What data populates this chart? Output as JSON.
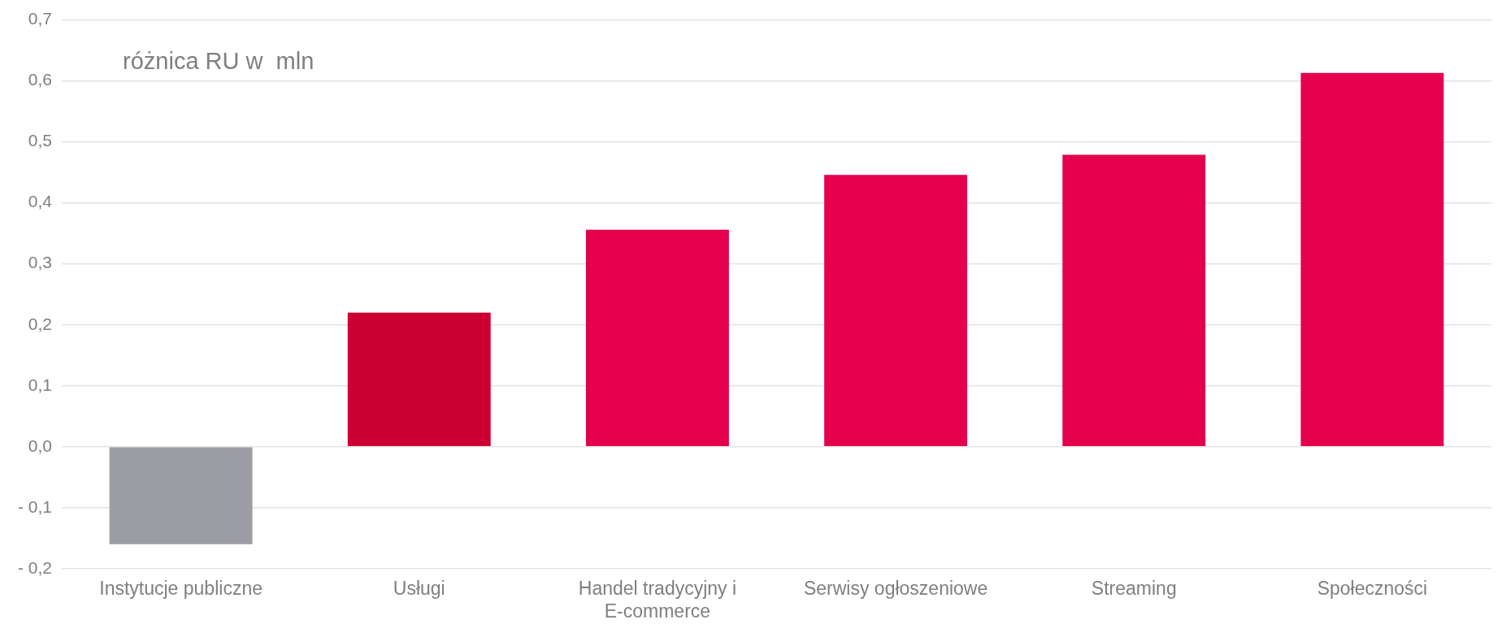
{
  "chart_data": {
    "type": "bar",
    "title": "różnica RU w  mln",
    "categories": [
      "Instytucje publiczne",
      "Usługi",
      "Handel tradycyjny i E-commerce",
      "Serwisy ogłoszeniowe",
      "Streaming",
      "Społeczności"
    ],
    "values": [
      -0.16,
      0.22,
      0.356,
      0.446,
      0.479,
      0.613
    ],
    "colors": [
      "#9b9ca4",
      "#cc0033",
      "#e4004c",
      "#e4004c",
      "#e4004c",
      "#e4004c"
    ],
    "ylim": [
      -0.2,
      0.7
    ],
    "yticks": [
      {
        "value": -0.2,
        "label": "- 0,2"
      },
      {
        "value": -0.1,
        "label": "- 0,1"
      },
      {
        "value": 0,
        "label": "0,0"
      },
      {
        "value": 0.1,
        "label": "0,1"
      },
      {
        "value": 0.2,
        "label": "0,2"
      },
      {
        "value": 0.3,
        "label": "0,3"
      },
      {
        "value": 0.4,
        "label": "0,4"
      },
      {
        "value": 0.5,
        "label": "0,5"
      },
      {
        "value": 0.6,
        "label": "0,6"
      },
      {
        "value": 0.7,
        "label": "0,7"
      }
    ],
    "grid": "y"
  }
}
